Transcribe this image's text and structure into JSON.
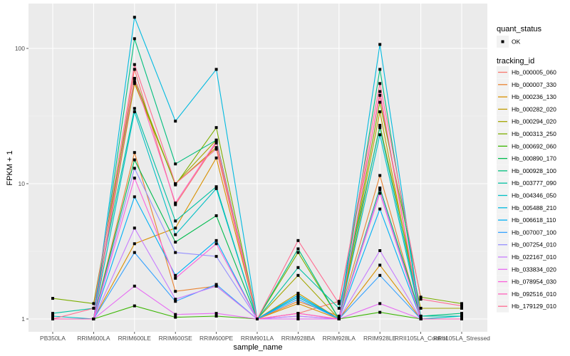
{
  "chart_data": {
    "type": "line",
    "title": "",
    "xlabel": "sample_name",
    "ylabel": "FPKM + 1",
    "yscale": "log10",
    "ylim": [
      0.8,
      200
    ],
    "yticks": [
      1,
      10,
      100
    ],
    "ytick_labels": [
      "1",
      "10",
      "100"
    ],
    "grid": true,
    "legend_position": "right",
    "categories": [
      "PB350LA",
      "RRIM600LA",
      "RRIM600LE",
      "RRIM600SE",
      "RRIM600PE",
      "RRIM901LA",
      "RRIM928BA",
      "RRIM928LA",
      "RRIM928LE",
      "RRII105LA_Control",
      "RRII105LA_Stressed"
    ],
    "shape_legend": {
      "title": "quant_status",
      "entries": [
        "OK"
      ]
    },
    "color_legend_title": "tracking_id",
    "series": [
      {
        "name": "Hb_000005_060",
        "color": "#F8766D",
        "values": [
          1.0,
          1.0,
          70,
          7.0,
          20,
          1.0,
          1.1,
          1.35,
          45,
          1.0,
          1.0
        ]
      },
      {
        "name": "Hb_000007_330",
        "color": "#EA8331",
        "values": [
          1.0,
          1.0,
          17,
          1.6,
          1.75,
          1.0,
          1.35,
          1.05,
          11.5,
          1.0,
          1.0
        ]
      },
      {
        "name": "Hb_000236_130",
        "color": "#D89000",
        "values": [
          1.0,
          1.0,
          3.6,
          4.7,
          15.5,
          1.0,
          1.3,
          1.0,
          2.5,
          1.0,
          1.0
        ]
      },
      {
        "name": "Hb_000282_020",
        "color": "#C09B00",
        "values": [
          1.0,
          1.0,
          55,
          10,
          18.5,
          1.0,
          1.55,
          1.0,
          34,
          1.0,
          1.0
        ]
      },
      {
        "name": "Hb_000294_020",
        "color": "#A3A500",
        "values": [
          1.0,
          1.0,
          57,
          10,
          21,
          1.0,
          2.1,
          1.0,
          27,
          1.2,
          1.2
        ]
      },
      {
        "name": "Hb_000313_250",
        "color": "#7CAE00",
        "values": [
          1.42,
          1.3,
          60,
          9.8,
          26,
          1.0,
          3.1,
          1.0,
          40,
          1.45,
          1.3
        ]
      },
      {
        "name": "Hb_000692_060",
        "color": "#39B600",
        "values": [
          1.0,
          1.0,
          1.25,
          1.03,
          1.05,
          1.0,
          1.0,
          1.0,
          1.12,
          1.0,
          1.0
        ]
      },
      {
        "name": "Hb_000890_170",
        "color": "#00BB4E",
        "values": [
          1.0,
          1.0,
          15,
          3.7,
          5.8,
          1.0,
          1.45,
          1.0,
          9.3,
          1.05,
          1.05
        ]
      },
      {
        "name": "Hb_000928_100",
        "color": "#00BF7D",
        "values": [
          1.0,
          1.0,
          118,
          14,
          21,
          1.0,
          3.3,
          1.0,
          70,
          1.05,
          1.1
        ]
      },
      {
        "name": "Hb_003777_090",
        "color": "#00C1A3",
        "values": [
          1.1,
          1.2,
          36,
          5.3,
          9.5,
          1.0,
          2.4,
          1.2,
          26,
          1.05,
          1.05
        ]
      },
      {
        "name": "Hb_004346_050",
        "color": "#00BFC4",
        "values": [
          1.05,
          1.0,
          34,
          4.2,
          9.2,
          1.0,
          1.5,
          1.0,
          23,
          1.0,
          1.05
        ]
      },
      {
        "name": "Hb_005488_210",
        "color": "#00BAE0",
        "values": [
          1.0,
          1.0,
          170,
          29,
          70,
          1.0,
          1.45,
          1.0,
          107,
          1.0,
          1.0
        ]
      },
      {
        "name": "Hb_006618_110",
        "color": "#00B0F6",
        "values": [
          1.0,
          1.0,
          8.0,
          2.1,
          3.8,
          1.0,
          1.5,
          1.0,
          6.5,
          1.0,
          1.0
        ]
      },
      {
        "name": "Hb_007007_100",
        "color": "#35A2FF",
        "values": [
          1.0,
          1.0,
          3.1,
          1.35,
          1.8,
          1.0,
          1.4,
          1.0,
          2.1,
          1.0,
          1.0
        ]
      },
      {
        "name": "Hb_007254_010",
        "color": "#9590FF",
        "values": [
          1.0,
          1.0,
          13,
          3.1,
          2.9,
          1.0,
          1.05,
          1.0,
          9.0,
          1.0,
          1.0
        ]
      },
      {
        "name": "Hb_022167_010",
        "color": "#C77CFF",
        "values": [
          1.0,
          1.0,
          4.7,
          1.4,
          1.75,
          1.0,
          1.05,
          1.0,
          3.2,
          1.0,
          1.0
        ]
      },
      {
        "name": "Hb_033834_020",
        "color": "#E76BF3",
        "values": [
          1.0,
          1.0,
          1.75,
          1.08,
          1.1,
          1.0,
          1.0,
          1.0,
          1.3,
          1.0,
          1.0
        ]
      },
      {
        "name": "Hb_078954_030",
        "color": "#FA62DB",
        "values": [
          1.0,
          1.0,
          11,
          2.0,
          3.6,
          1.0,
          1.1,
          1.0,
          8.5,
          1.0,
          1.0
        ]
      },
      {
        "name": "Hb_092516_010",
        "color": "#FF62BC",
        "values": [
          1.0,
          1.0,
          60,
          7.2,
          20.5,
          1.0,
          1.1,
          1.0,
          48,
          1.0,
          1.0
        ]
      },
      {
        "name": "Hb_179129_010",
        "color": "#FF6C91",
        "values": [
          1.0,
          1.2,
          76,
          10,
          18,
          1.0,
          3.8,
          1.3,
          55,
          1.4,
          1.25
        ]
      }
    ]
  }
}
